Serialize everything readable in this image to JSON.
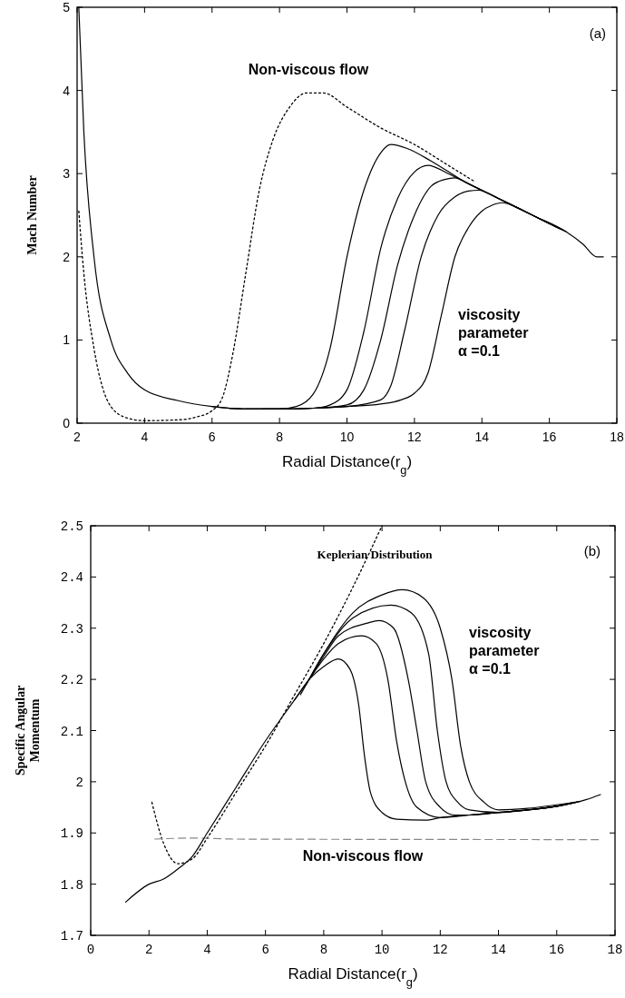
{
  "chart_data": [
    {
      "type": "line",
      "xlabel": "Radial Distance(r$_{g}$)",
      "ylabel": "Mach Number",
      "xlim": [
        2,
        18
      ],
      "ylim": [
        0,
        5
      ],
      "xticks": [
        2,
        4,
        6,
        8,
        10,
        12,
        14,
        16,
        18
      ],
      "yticks": [
        0,
        1,
        2,
        3,
        4,
        5
      ],
      "grid": false,
      "annotations": [
        "(a)",
        "Non-viscous flow",
        "viscosity\nparameter\nα =0.1"
      ],
      "series": [
        {
          "color": "#000000",
          "line_style": "dotted",
          "x": [
            2.05,
            2.2,
            2.5,
            3,
            3.5,
            4,
            5,
            5.5,
            6,
            6.3,
            6.6,
            7,
            7.4,
            7.8,
            8.3,
            8.8,
            9.3,
            10,
            11,
            12,
            13,
            13.8
          ],
          "values": [
            2.55,
            1.8,
            0.9,
            0.2,
            0.06,
            0.03,
            0.04,
            0.07,
            0.15,
            0.3,
            0.8,
            1.8,
            2.8,
            3.4,
            3.8,
            3.97,
            3.97,
            3.8,
            3.55,
            3.35,
            3.1,
            2.9
          ]
        },
        {
          "color": "#000000",
          "line_style": "solid",
          "x": [
            2.05,
            2.2,
            2.5,
            3,
            3.5,
            4,
            5,
            6,
            7,
            8,
            8.5,
            9,
            9.5,
            10,
            10.5,
            11,
            11.3,
            11.8,
            12.5,
            13.5,
            14.5,
            15.5,
            16.5,
            17,
            17.4,
            17.6
          ],
          "values": [
            5,
            3.5,
            2,
            1,
            0.6,
            0.4,
            0.27,
            0.2,
            0.17,
            0.17,
            0.2,
            0.35,
            0.9,
            2,
            2.8,
            3.25,
            3.35,
            3.3,
            3.15,
            2.9,
            2.7,
            2.5,
            2.3,
            2.15,
            2,
            2
          ]
        },
        {
          "color": "#000000",
          "line_style": "solid",
          "x": [
            6,
            7,
            8,
            9,
            9.5,
            10,
            10.5,
            11,
            11.5,
            12,
            12.4,
            13,
            13.5,
            14.5,
            15.5,
            16.5
          ],
          "values": [
            0.2,
            0.17,
            0.17,
            0.18,
            0.22,
            0.4,
            1.1,
            2.1,
            2.7,
            3.02,
            3.1,
            3,
            2.9,
            2.7,
            2.5,
            2.3
          ]
        },
        {
          "color": "#000000",
          "line_style": "solid",
          "x": [
            6.5,
            7,
            8,
            9,
            10,
            10.5,
            11,
            11.5,
            12,
            12.5,
            12.9,
            13.2,
            13.6,
            14.5,
            15.5,
            16.4
          ],
          "values": [
            0.18,
            0.17,
            0.17,
            0.18,
            0.22,
            0.4,
            1,
            1.9,
            2.5,
            2.85,
            2.93,
            2.95,
            2.88,
            2.7,
            2.5,
            2.32
          ]
        },
        {
          "color": "#000000",
          "line_style": "solid",
          "x": [
            7,
            8,
            9,
            10,
            11,
            11.3,
            11.7,
            12.2,
            12.7,
            13.2,
            13.6,
            13.9,
            14.5,
            15.5,
            16.3
          ],
          "values": [
            0.17,
            0.17,
            0.18,
            0.2,
            0.28,
            0.45,
            1.1,
            2,
            2.5,
            2.72,
            2.79,
            2.8,
            2.7,
            2.5,
            2.34
          ]
        },
        {
          "color": "#000000",
          "line_style": "solid",
          "x": [
            7.5,
            8,
            9,
            10,
            11,
            11.6,
            12,
            12.4,
            12.8,
            13.2,
            13.6,
            14,
            14.3,
            14.6,
            15,
            15.5,
            16.2
          ],
          "values": [
            0.17,
            0.17,
            0.18,
            0.2,
            0.23,
            0.28,
            0.36,
            0.6,
            1.3,
            2,
            2.35,
            2.55,
            2.62,
            2.65,
            2.6,
            2.5,
            2.36
          ]
        }
      ]
    },
    {
      "type": "line",
      "xlabel": "Radial Distance(r$_{g}$)",
      "ylabel": "Specific Angular\nMomentum",
      "xlim": [
        0,
        18
      ],
      "ylim": [
        1.7,
        2.5
      ],
      "xticks": [
        0,
        2,
        4,
        6,
        8,
        10,
        12,
        14,
        16,
        18
      ],
      "yticks": [
        1.7,
        1.8,
        1.9,
        2,
        2.1,
        2.2,
        2.3,
        2.4,
        2.5
      ],
      "grid": false,
      "annotations": [
        "(b)",
        "Keplerian Distribution",
        "viscosity\nparameter\nα =0.1",
        "Non-viscous flow"
      ],
      "series": [
        {
          "color": "#000000",
          "line_style": "dotted",
          "x": [
            2.1,
            2.5,
            3,
            3.5,
            4,
            5,
            6,
            7,
            8,
            9,
            10
          ],
          "values": [
            1.96,
            1.88,
            1.84,
            1.85,
            1.89,
            1.98,
            2.07,
            2.17,
            2.27,
            2.38,
            2.5
          ]
        },
        {
          "color": "#888888",
          "line_style": "dashed",
          "x": [
            2.2,
            3.5,
            5,
            17.5
          ],
          "values": [
            1.888,
            1.89,
            1.888,
            1.887
          ]
        },
        {
          "color": "#000000",
          "line_style": "solid",
          "x": [
            1.2,
            2,
            2.5,
            3,
            3.5,
            4,
            5,
            6,
            7,
            7.5,
            8,
            8.5,
            8.9,
            9.2,
            9.4,
            9.6,
            10,
            10.5,
            11.5,
            12,
            13,
            14,
            15,
            16,
            17,
            17.5
          ],
          "values": [
            1.765,
            1.8,
            1.81,
            1.83,
            1.855,
            1.9,
            1.99,
            2.08,
            2.16,
            2.2,
            2.225,
            2.24,
            2.22,
            2.15,
            2.05,
            1.98,
            1.94,
            1.927,
            1.925,
            1.93,
            1.935,
            1.94,
            1.945,
            1.952,
            1.965,
            1.975
          ]
        },
        {
          "color": "#000000",
          "line_style": "solid",
          "x": [
            7,
            7.5,
            8,
            8.5,
            9.3,
            9.8,
            10.2,
            10.5,
            10.8,
            11.2,
            12,
            13,
            14,
            15,
            16,
            16.8
          ],
          "values": [
            2.16,
            2.2,
            2.24,
            2.27,
            2.285,
            2.27,
            2.2,
            2.08,
            2,
            1.95,
            1.93,
            1.935,
            1.94,
            1.945,
            1.952,
            1.962
          ]
        },
        {
          "color": "#000000",
          "line_style": "solid",
          "x": [
            7.2,
            7.5,
            8,
            8.5,
            9.5,
            9.9,
            10.4,
            10.9,
            11.2,
            11.5,
            12,
            12.5,
            13,
            14,
            15,
            16,
            16.7
          ],
          "values": [
            2.17,
            2.2,
            2.245,
            2.285,
            2.31,
            2.315,
            2.3,
            2.2,
            2.1,
            2,
            1.95,
            1.935,
            1.935,
            1.94,
            1.945,
            1.952,
            1.961
          ]
        },
        {
          "color": "#000000",
          "line_style": "solid",
          "x": [
            7.4,
            8,
            9,
            10.3,
            11,
            11.6,
            11.9,
            12.2,
            12.6,
            13,
            14,
            15,
            16,
            16.6
          ],
          "values": [
            2.19,
            2.25,
            2.32,
            2.345,
            2.33,
            2.25,
            2.1,
            2,
            1.96,
            1.945,
            1.94,
            1.945,
            1.952,
            1.96
          ]
        },
        {
          "color": "#000000",
          "line_style": "solid",
          "x": [
            7.6,
            8,
            9,
            10,
            10.7,
            11.4,
            12,
            12.4,
            12.7,
            13,
            13.5,
            14,
            15,
            16,
            16.5
          ],
          "values": [
            2.21,
            2.25,
            2.33,
            2.365,
            2.375,
            2.36,
            2.3,
            2.2,
            2.07,
            2,
            1.96,
            1.945,
            1.948,
            1.955,
            1.959
          ]
        }
      ]
    }
  ]
}
